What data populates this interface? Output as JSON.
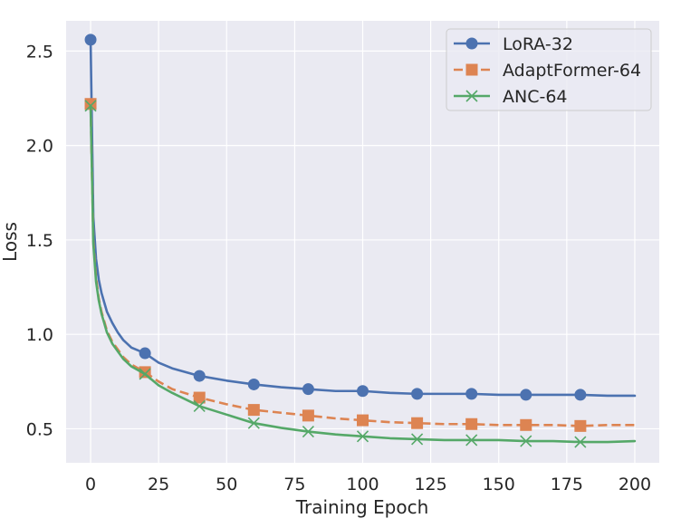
{
  "chart_data": {
    "type": "line",
    "title": "",
    "xlabel": "Training Epoch",
    "ylabel": "Loss",
    "xlim": [
      -9,
      209
    ],
    "ylim": [
      0.32,
      2.66
    ],
    "xticks": [
      0,
      25,
      50,
      75,
      100,
      125,
      150,
      175,
      200
    ],
    "xtick_labels": [
      "0",
      "25",
      "50",
      "75",
      "100",
      "125",
      "150",
      "175",
      "200"
    ],
    "yticks": [
      0.5,
      1.0,
      1.5,
      2.0,
      2.5
    ],
    "ytick_labels": [
      "0.5",
      "1.0",
      "1.5",
      "2.0",
      "2.5"
    ],
    "grid": true,
    "background": "#eaeaf2",
    "legend_position": "top-right",
    "marker_epochs": [
      0,
      20,
      40,
      60,
      80,
      100,
      120,
      140,
      160,
      180
    ],
    "series": [
      {
        "name": "LoRA-32",
        "color": "#4c72b0",
        "linestyle": "solid",
        "marker": "circle",
        "x": [
          0,
          1,
          2,
          3,
          4,
          5,
          6,
          8,
          10,
          12,
          15,
          20,
          25,
          30,
          40,
          50,
          60,
          70,
          80,
          90,
          100,
          110,
          120,
          130,
          140,
          150,
          160,
          170,
          180,
          190,
          200
        ],
        "values": [
          2.56,
          1.62,
          1.4,
          1.29,
          1.22,
          1.17,
          1.12,
          1.06,
          1.01,
          0.97,
          0.93,
          0.9,
          0.85,
          0.82,
          0.78,
          0.755,
          0.735,
          0.72,
          0.71,
          0.7,
          0.7,
          0.69,
          0.685,
          0.685,
          0.685,
          0.68,
          0.68,
          0.68,
          0.68,
          0.675,
          0.675
        ]
      },
      {
        "name": "AdaptFormer-64",
        "color": "#dd8452",
        "linestyle": "dashed",
        "marker": "square",
        "x": [
          0,
          1,
          2,
          3,
          4,
          5,
          6,
          8,
          10,
          12,
          15,
          20,
          25,
          30,
          40,
          50,
          60,
          70,
          80,
          90,
          100,
          110,
          120,
          130,
          140,
          150,
          160,
          170,
          180,
          190,
          200
        ],
        "values": [
          2.22,
          1.5,
          1.3,
          1.19,
          1.12,
          1.07,
          1.02,
          0.96,
          0.92,
          0.88,
          0.84,
          0.8,
          0.75,
          0.71,
          0.665,
          0.63,
          0.6,
          0.585,
          0.57,
          0.555,
          0.545,
          0.535,
          0.53,
          0.525,
          0.525,
          0.52,
          0.52,
          0.52,
          0.515,
          0.52,
          0.52
        ]
      },
      {
        "name": "ANC-64",
        "color": "#55a868",
        "linestyle": "solid",
        "marker": "x",
        "x": [
          0,
          1,
          2,
          3,
          4,
          5,
          6,
          8,
          10,
          12,
          15,
          20,
          25,
          30,
          40,
          50,
          60,
          70,
          80,
          90,
          100,
          110,
          120,
          130,
          140,
          150,
          160,
          170,
          180,
          190,
          200
        ],
        "values": [
          2.21,
          1.48,
          1.28,
          1.18,
          1.11,
          1.06,
          1.01,
          0.95,
          0.91,
          0.87,
          0.83,
          0.79,
          0.73,
          0.69,
          0.62,
          0.575,
          0.53,
          0.505,
          0.485,
          0.47,
          0.46,
          0.45,
          0.445,
          0.44,
          0.44,
          0.44,
          0.435,
          0.435,
          0.43,
          0.43,
          0.435
        ]
      }
    ]
  }
}
